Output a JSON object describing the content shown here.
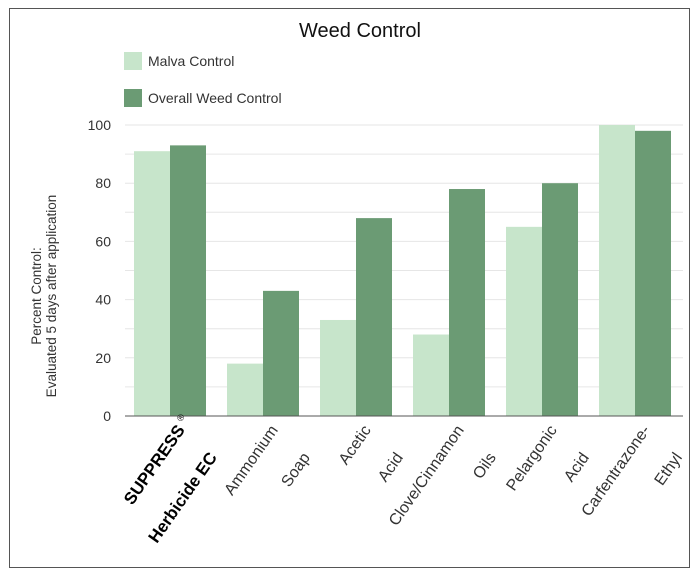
{
  "chart_data": {
    "type": "bar",
    "title": "Weed Control",
    "ylabel_lines": [
      "Percent Control:",
      "Evaluated 5 days after application"
    ],
    "xlabel": "",
    "ylim": [
      0,
      100
    ],
    "yticks": [
      0,
      20,
      40,
      60,
      80,
      100
    ],
    "grid": true,
    "legend_placement": "top-left",
    "categories": [
      {
        "lines": [
          "SUPPRESS",
          "Herbicide EC"
        ],
        "registered_mark": "®",
        "bold": true
      },
      {
        "lines": [
          "Ammonium",
          "Soap"
        ],
        "bold": false
      },
      {
        "lines": [
          "Acetic",
          "Acid"
        ],
        "bold": false
      },
      {
        "lines": [
          "Clove/Cinnamon",
          "Oils"
        ],
        "bold": false
      },
      {
        "lines": [
          "Pelargonic",
          "Acid"
        ],
        "bold": false
      },
      {
        "lines": [
          "Carfentrazone-",
          "Ethyl"
        ],
        "bold": false
      }
    ],
    "series": [
      {
        "name": "Malva Control",
        "color": "#c7e5cb",
        "values": [
          91,
          18,
          33,
          28,
          65,
          100
        ]
      },
      {
        "name": "Overall Weed Control",
        "color": "#6b9b74",
        "values": [
          93,
          43,
          68,
          78,
          80,
          98
        ]
      }
    ]
  }
}
